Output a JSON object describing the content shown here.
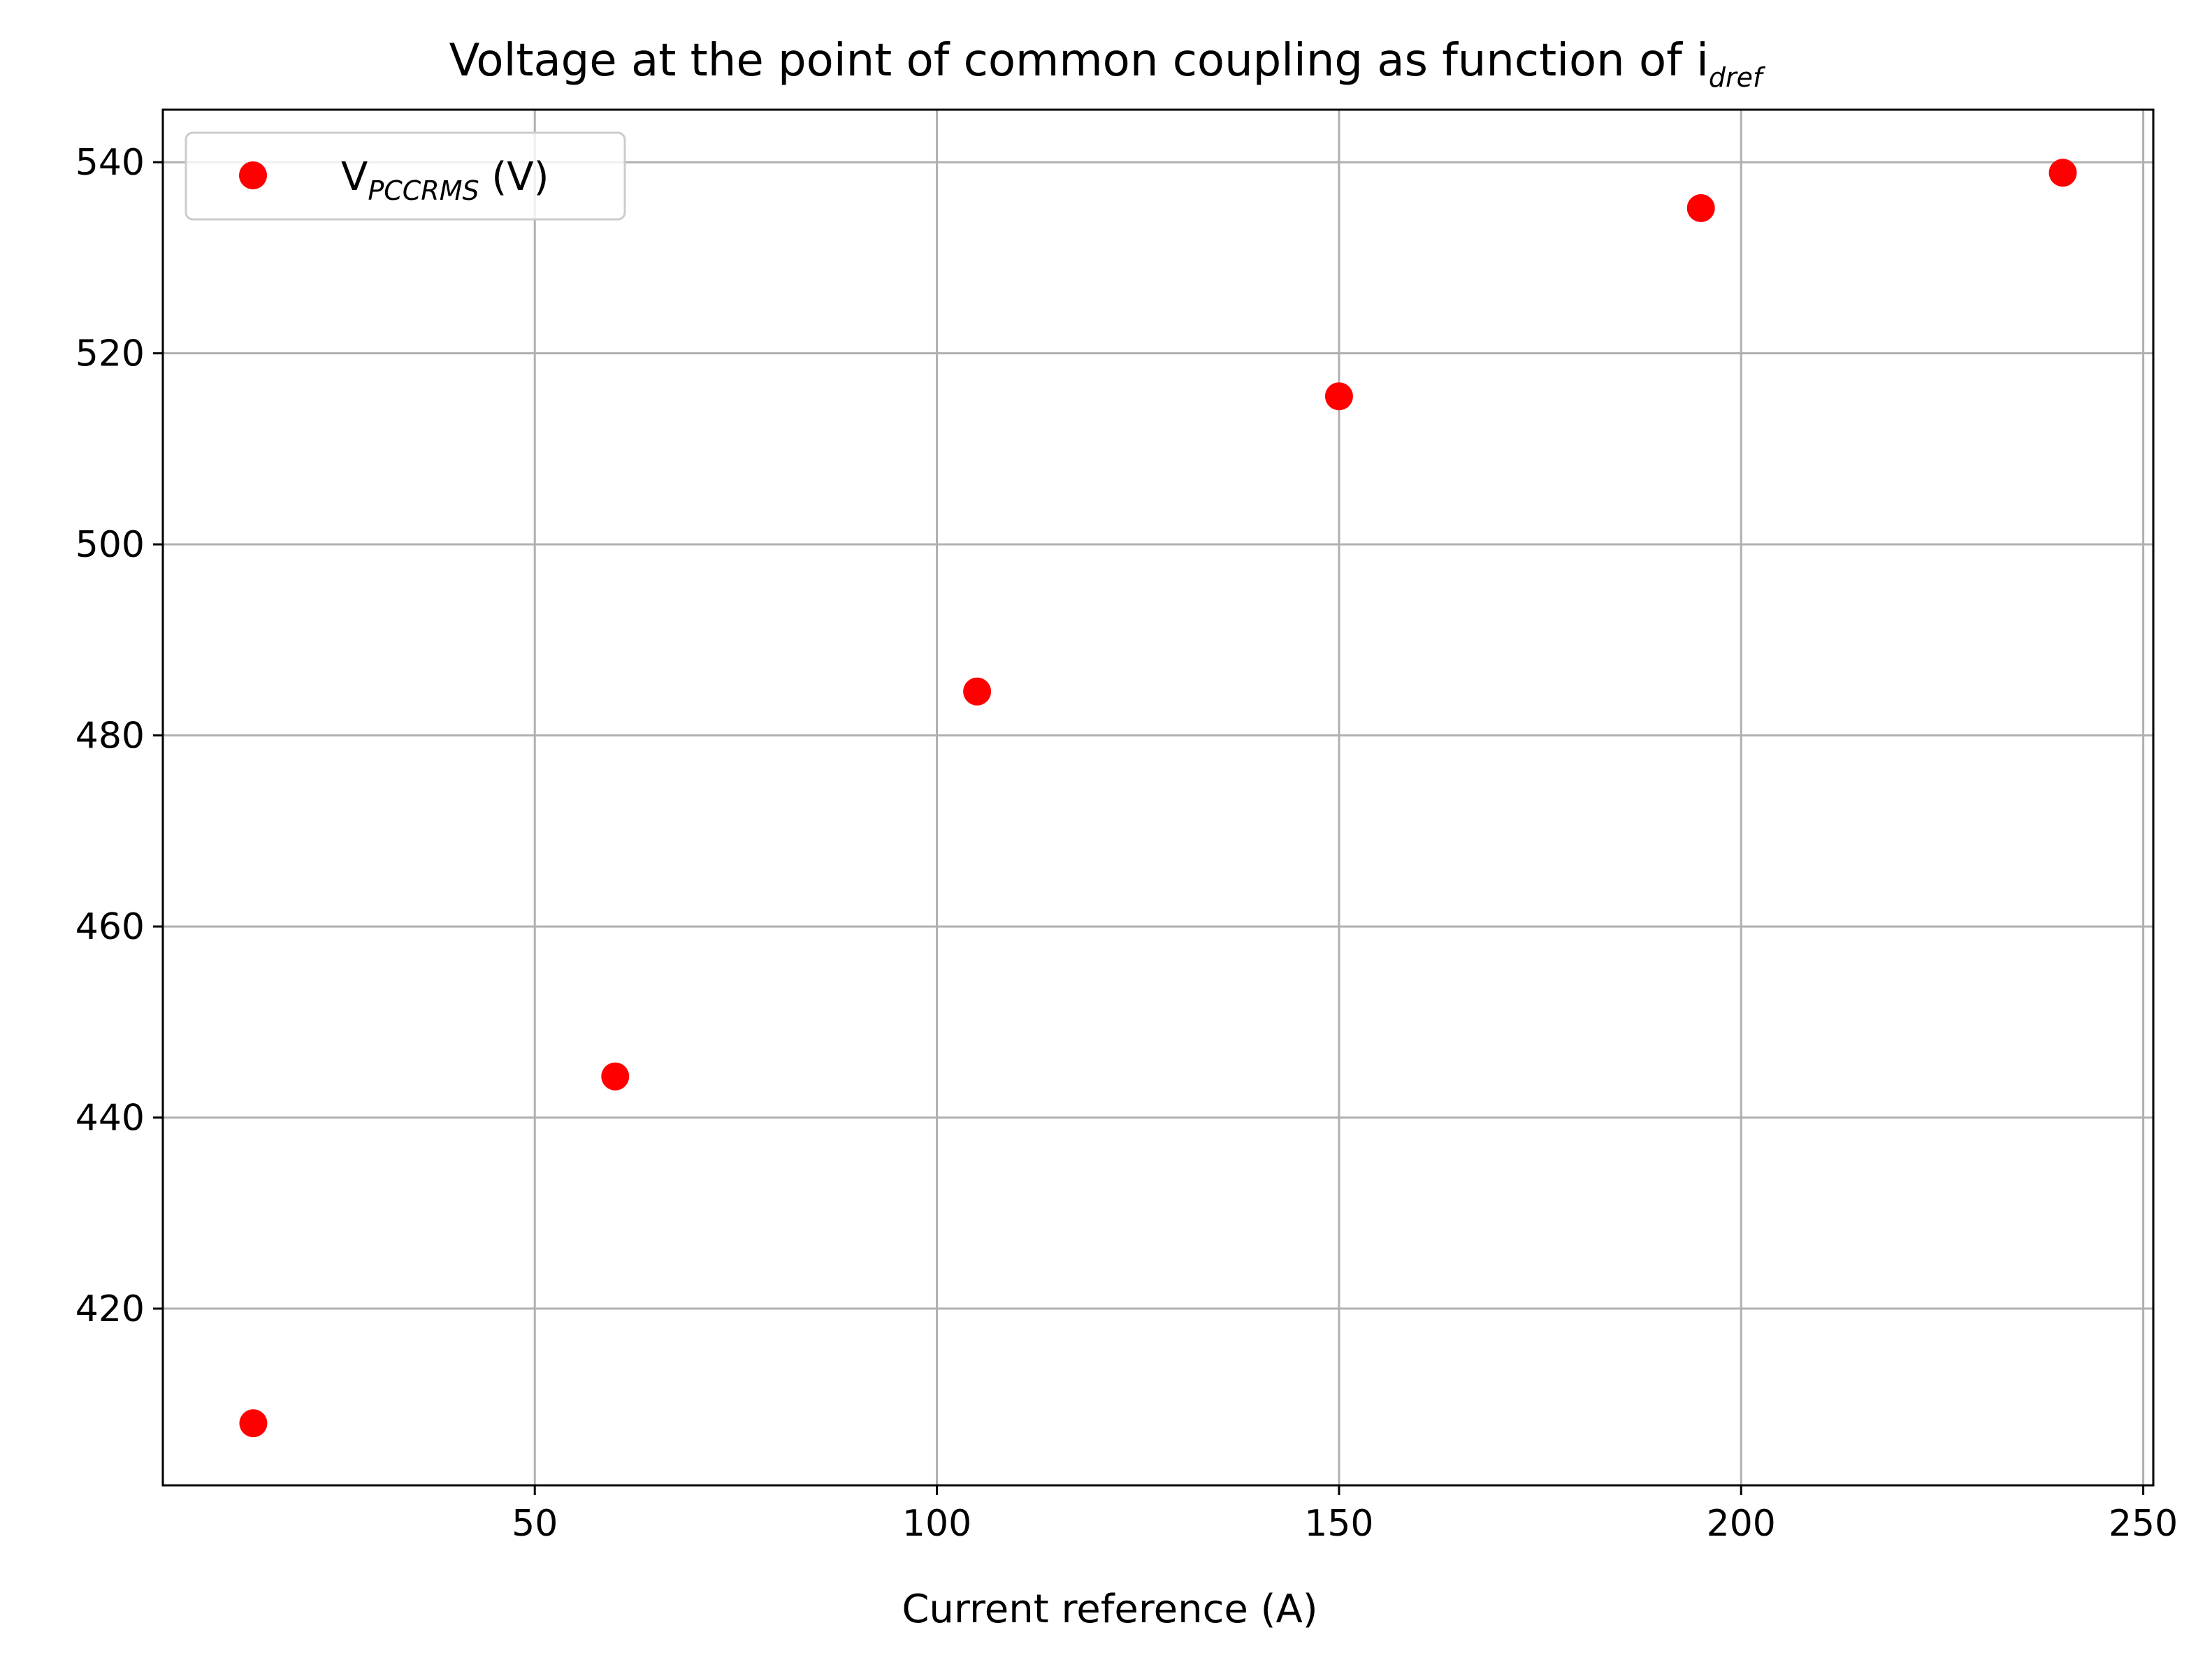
{
  "chart_data": {
    "type": "scatter",
    "title": {
      "main": "Voltage at the point of common coupling as function of i",
      "subscript": "dref"
    },
    "xlabel": "Current reference (A)",
    "ylabel": "",
    "xlim": [
      3.75,
      251.25
    ],
    "ylim": [
      401.5,
      545.5
    ],
    "xticks": [
      50,
      100,
      150,
      200,
      250
    ],
    "yticks": [
      420,
      440,
      460,
      480,
      500,
      520,
      540
    ],
    "grid": true,
    "legend_position": "top-left",
    "series": [
      {
        "name_main": "V",
        "name_subscript": "PCCRMS",
        "name_suffix": " (V)",
        "color": "#ff0000",
        "marker": "circle",
        "x": [
          15,
          60,
          105,
          150,
          195,
          240
        ],
        "y": [
          408,
          444.3,
          484.6,
          515.5,
          535.2,
          538.9
        ]
      }
    ]
  }
}
